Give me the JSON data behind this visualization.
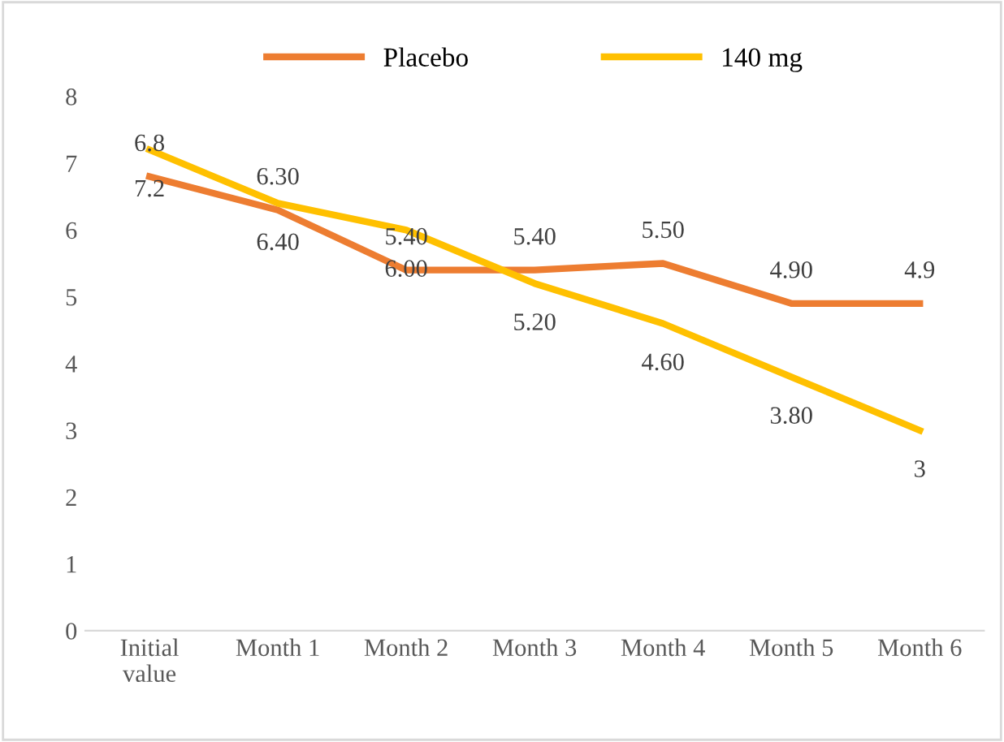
{
  "chart_data": {
    "type": "line",
    "categories": [
      "Initial\nvalue",
      "Month 1",
      "Month 2",
      "Month 3",
      "Month 4",
      "Month 5",
      "Month 6"
    ],
    "series": [
      {
        "name": "Placebo",
        "color": "#ed7d31",
        "values": [
          6.8,
          6.3,
          5.4,
          5.4,
          5.5,
          4.9,
          4.9
        ],
        "value_labels": [
          "6.8",
          "6.30",
          "5.40",
          "5.40",
          "5.50",
          "4.90",
          "4.9"
        ]
      },
      {
        "name": "140 mg",
        "color": "#ffc000",
        "values": [
          7.2,
          6.4,
          6.0,
          5.2,
          4.6,
          3.8,
          3
        ],
        "value_labels": [
          "7.2",
          "6.40",
          "6.00",
          "5.20",
          "4.60",
          "3.80",
          "3"
        ]
      }
    ],
    "ylim": [
      0,
      8
    ],
    "yticks": [
      0,
      1,
      2,
      3,
      4,
      5,
      6,
      7,
      8
    ],
    "grid": false,
    "legend": "top",
    "marker": "none",
    "line_style": "solid"
  }
}
